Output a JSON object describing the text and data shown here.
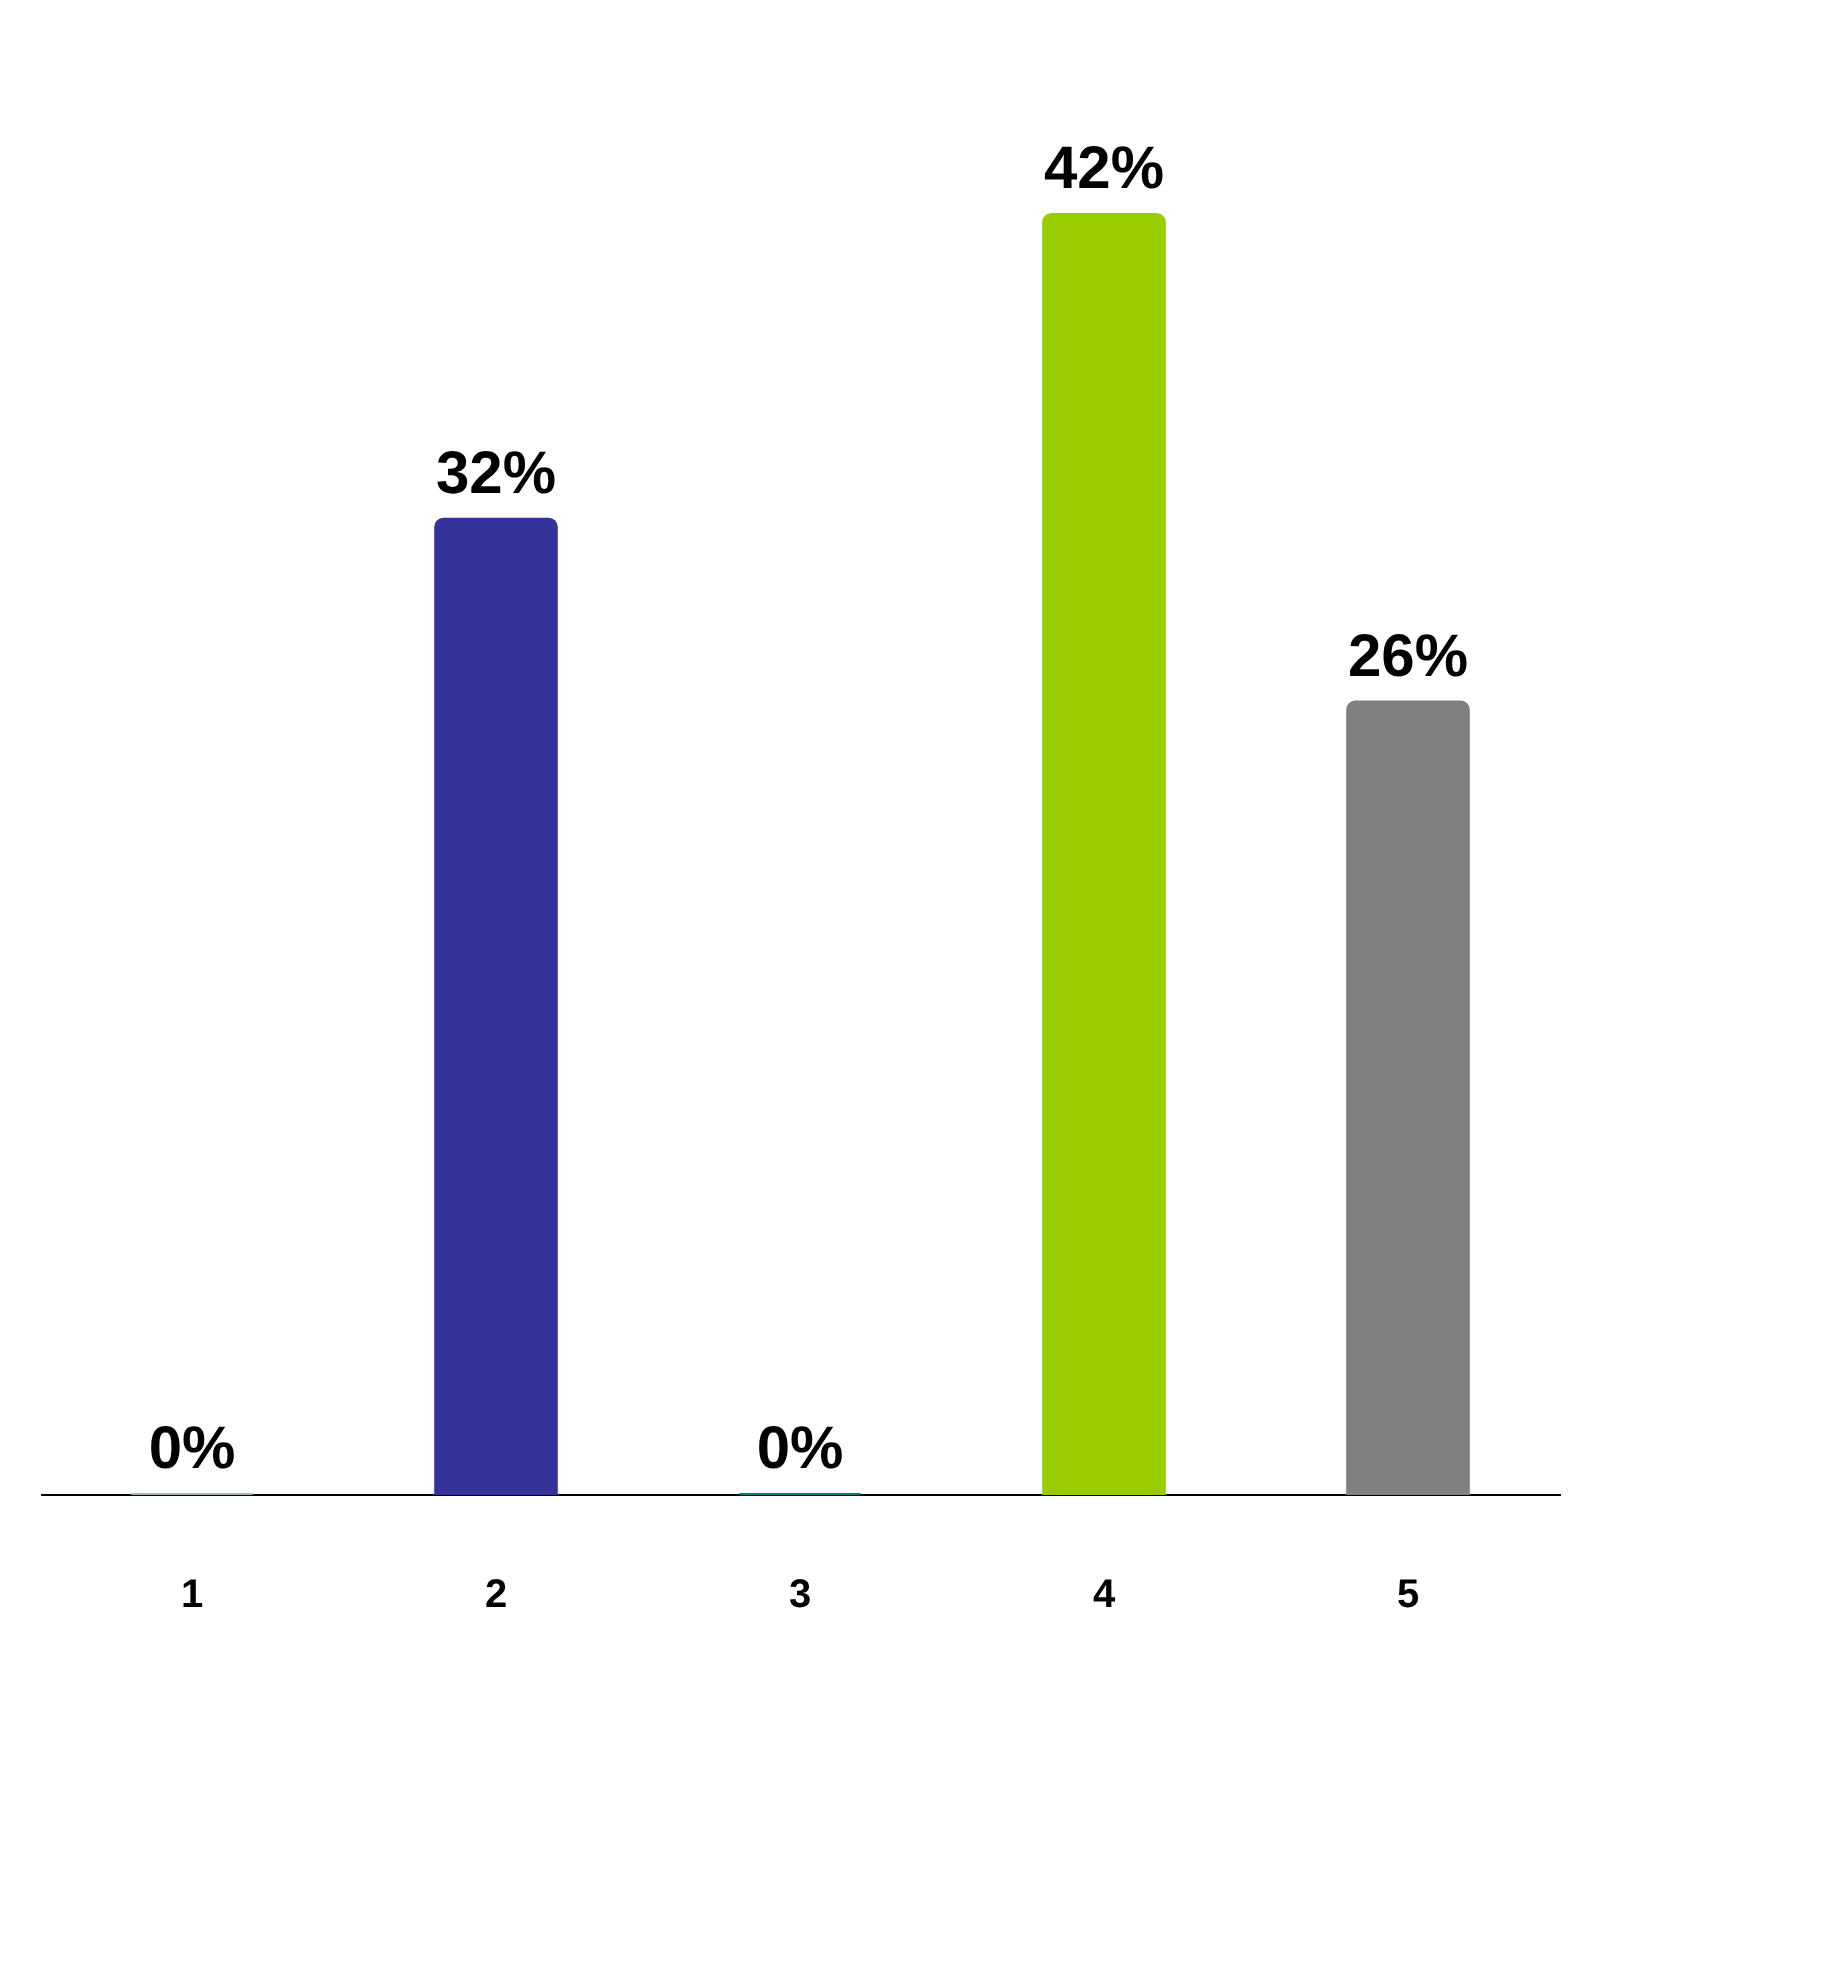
{
  "chart_data": {
    "type": "bar",
    "categories": [
      "1",
      "2",
      "3",
      "4",
      "5"
    ],
    "values": [
      0,
      32,
      0,
      42,
      26
    ],
    "colors": [
      "#a0b8b8",
      "#333399",
      "#008080",
      "#99cc00",
      "#808080"
    ],
    "value_labels": [
      "0%",
      "32%",
      "0%",
      "42%",
      "26%"
    ],
    "grid": false
  }
}
